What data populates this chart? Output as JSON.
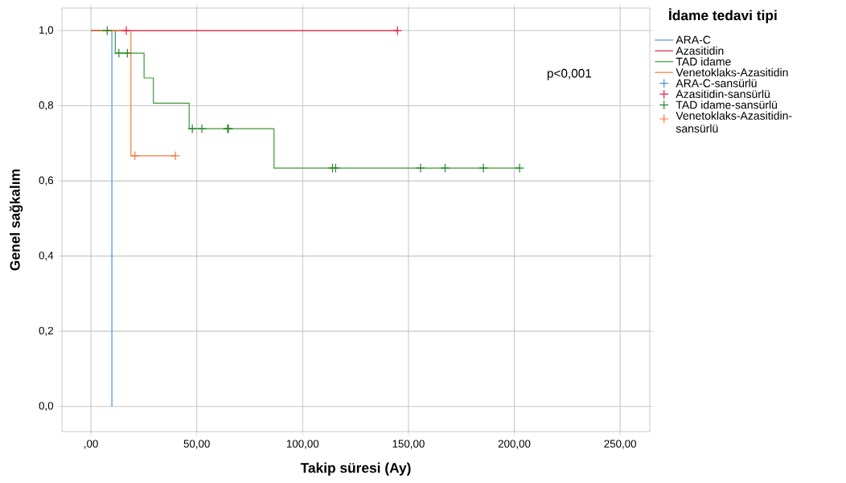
{
  "chart_data": {
    "type": "step",
    "xlabel": "Takip süresi (Ay)",
    "ylabel": "Genel sağkalım",
    "legend_title": "İdame tedavi tipi",
    "legend": "right",
    "grid": true,
    "xlim": [
      -13.7,
      264
    ],
    "ylim": [
      -0.067,
      1.06
    ],
    "xticks": [
      {
        "value": 0,
        "label": ",00"
      },
      {
        "value": 50,
        "label": "50,00"
      },
      {
        "value": 100,
        "label": "100,00"
      },
      {
        "value": 150,
        "label": "150,00"
      },
      {
        "value": 200,
        "label": "200,00"
      },
      {
        "value": 250,
        "label": "250,00"
      }
    ],
    "yticks": [
      {
        "value": 0,
        "label": "0,0"
      },
      {
        "value": 0.2,
        "label": "0,2"
      },
      {
        "value": 0.4,
        "label": "0,4"
      },
      {
        "value": 0.6,
        "label": "0,6"
      },
      {
        "value": 0.8,
        "label": "0,8"
      },
      {
        "value": 1.0,
        "label": "1,0"
      }
    ],
    "annotations": [
      "p<0,001"
    ],
    "series": [
      {
        "name": "ARA-C",
        "color": "#4a8fe0",
        "x": [
          0,
          9.9
        ],
        "values": [
          1,
          0
        ]
      },
      {
        "name": "Azasitidin",
        "color": "#e0204a",
        "x": [
          0,
          145
        ],
        "values": [
          1,
          1
        ]
      },
      {
        "name": "TAD idame",
        "color": "#3a9a3a",
        "x": [
          0,
          11.5,
          25.1,
          29.5,
          46.4,
          86.5,
          202.5
        ],
        "values": [
          1,
          0.94,
          0.874,
          0.807,
          0.739,
          0.634,
          0.634
        ]
      },
      {
        "name": "Venetoklaks-Azasitidin",
        "color": "#f5793a",
        "x": [
          0,
          18.9,
          40
        ],
        "values": [
          1,
          0.667,
          0.667
        ]
      },
      {
        "name": "ARA-C-sansürlü",
        "type": "scatter",
        "marker": "cross",
        "color": "#4a8fe0"
      },
      {
        "name": "Azasitidin-sansürlü",
        "type": "scatter",
        "marker": "cross",
        "color": "#e0204a",
        "x": [
          16.7,
          144.8
        ],
        "values": [
          1,
          1
        ]
      },
      {
        "name": "TAD idame-sansürlü",
        "type": "scatter",
        "marker": "cross",
        "color": "#2a842a",
        "x": [
          7.7,
          13.2,
          17.2,
          47.9,
          52.4,
          64.5,
          65,
          114.1,
          115.6,
          155.7,
          167.3,
          185.4,
          202.5
        ],
        "values": [
          1,
          0.94,
          0.94,
          0.739,
          0.739,
          0.739,
          0.739,
          0.634,
          0.634,
          0.634,
          0.634,
          0.634,
          0.634
        ]
      },
      {
        "name": "Venetoklaks-Azasitidin-sansürlü",
        "type": "scatter",
        "marker": "cross",
        "color": "#f5793a",
        "x": [
          20.8,
          39.9
        ],
        "values": [
          0.667,
          0.667
        ]
      }
    ]
  }
}
